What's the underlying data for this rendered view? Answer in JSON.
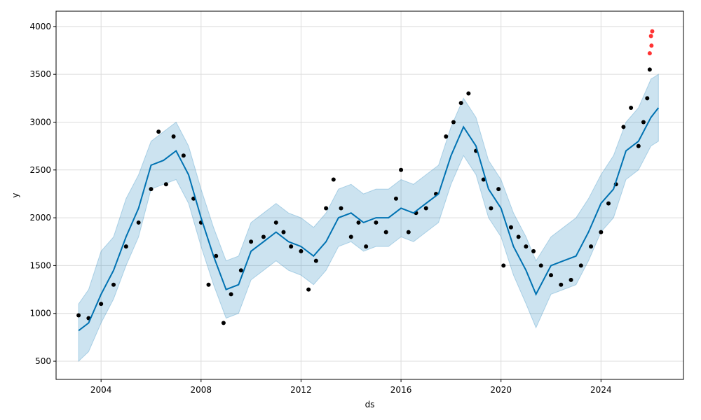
{
  "chart_data": {
    "type": "scatter",
    "xlabel": "ds",
    "ylabel": "y",
    "xlim": [
      2002.2,
      2027.3
    ],
    "ylim": [
      310,
      4160
    ],
    "x_ticks": [
      {
        "value": 2004,
        "label": "2004"
      },
      {
        "value": 2008,
        "label": "2008"
      },
      {
        "value": 2012,
        "label": "2012"
      },
      {
        "value": 2016,
        "label": "2016"
      },
      {
        "value": 2020,
        "label": "2020"
      },
      {
        "value": 2024,
        "label": "2024"
      }
    ],
    "y_ticks": [
      {
        "value": 500,
        "label": "500"
      },
      {
        "value": 1000,
        "label": "1000"
      },
      {
        "value": 1500,
        "label": "1500"
      },
      {
        "value": 2000,
        "label": "2000"
      },
      {
        "value": 2500,
        "label": "2500"
      },
      {
        "value": 3000,
        "label": "3000"
      },
      {
        "value": 3500,
        "label": "3500"
      },
      {
        "value": 4000,
        "label": "4000"
      }
    ],
    "grid": true,
    "colors": {
      "observed": "#000000",
      "forecast": "#0072B2",
      "interval": "#0072B2",
      "outliers": "#ff0000"
    },
    "series": [
      {
        "role": "observed",
        "kind": "points",
        "x": [
          2003.1,
          2003.5,
          2004.0,
          2004.5,
          2005.0,
          2005.5,
          2006.0,
          2006.3,
          2006.6,
          2006.9,
          2007.3,
          2007.7,
          2008.0,
          2008.3,
          2008.6,
          2008.9,
          2009.2,
          2009.6,
          2010.0,
          2010.5,
          2011.0,
          2011.3,
          2011.6,
          2012.0,
          2012.3,
          2012.6,
          2013.0,
          2013.3,
          2013.6,
          2014.0,
          2014.3,
          2014.6,
          2015.0,
          2015.4,
          2015.8,
          2016.0,
          2016.3,
          2016.6,
          2017.0,
          2017.4,
          2017.8,
          2018.1,
          2018.4,
          2018.7,
          2019.0,
          2019.3,
          2019.6,
          2019.9,
          2020.1,
          2020.4,
          2020.7,
          2021.0,
          2021.3,
          2021.6,
          2022.0,
          2022.4,
          2022.8,
          2023.2,
          2023.6,
          2024.0,
          2024.3,
          2024.6,
          2024.9,
          2025.2,
          2025.5,
          2025.7,
          2025.85,
          2025.95
        ],
        "y": [
          980,
          950,
          1100,
          1300,
          1700,
          1950,
          2300,
          2900,
          2350,
          2850,
          2650,
          2200,
          1950,
          1300,
          1600,
          900,
          1200,
          1450,
          1750,
          1800,
          1950,
          1850,
          1700,
          1650,
          1250,
          1550,
          2100,
          2400,
          2100,
          1800,
          1950,
          1700,
          1950,
          1850,
          2200,
          2500,
          1850,
          2050,
          2100,
          2250,
          2850,
          3000,
          3200,
          3300,
          2700,
          2400,
          2100,
          2300,
          1500,
          1900,
          1800,
          1700,
          1650,
          1500,
          1400,
          1300,
          1350,
          1500,
          1700,
          1850,
          2150,
          2350,
          2950,
          3150,
          2750,
          3000,
          3250,
          3550
        ]
      },
      {
        "role": "forecast",
        "kind": "line",
        "x": [
          2003.1,
          2003.5,
          2004.0,
          2004.5,
          2005.0,
          2005.5,
          2006.0,
          2006.5,
          2007.0,
          2007.5,
          2008.0,
          2008.5,
          2009.0,
          2009.5,
          2010.0,
          2010.5,
          2011.0,
          2011.5,
          2012.0,
          2012.5,
          2013.0,
          2013.5,
          2014.0,
          2014.5,
          2015.0,
          2015.5,
          2016.0,
          2016.5,
          2017.0,
          2017.5,
          2018.0,
          2018.5,
          2019.0,
          2019.5,
          2020.0,
          2020.5,
          2021.0,
          2021.4,
          2022.0,
          2022.5,
          2023.0,
          2023.5,
          2024.0,
          2024.5,
          2025.0,
          2025.5,
          2026.0,
          2026.3
        ],
        "y": [
          820,
          900,
          1200,
          1450,
          1800,
          2100,
          2550,
          2600,
          2700,
          2450,
          2000,
          1600,
          1250,
          1300,
          1650,
          1750,
          1850,
          1750,
          1700,
          1600,
          1750,
          2000,
          2050,
          1950,
          2000,
          2000,
          2100,
          2050,
          2150,
          2250,
          2650,
          2950,
          2750,
          2300,
          2100,
          1700,
          1450,
          1200,
          1500,
          1550,
          1600,
          1850,
          2150,
          2300,
          2700,
          2800,
          3050,
          3150
        ]
      },
      {
        "role": "interval_upper",
        "kind": "band",
        "x": [
          2003.1,
          2003.5,
          2004.0,
          2004.5,
          2005.0,
          2005.5,
          2006.0,
          2006.5,
          2007.0,
          2007.5,
          2008.0,
          2008.5,
          2009.0,
          2009.5,
          2010.0,
          2010.5,
          2011.0,
          2011.5,
          2012.0,
          2012.5,
          2013.0,
          2013.5,
          2014.0,
          2014.5,
          2015.0,
          2015.5,
          2016.0,
          2016.5,
          2017.0,
          2017.5,
          2018.0,
          2018.5,
          2019.0,
          2019.5,
          2020.0,
          2020.5,
          2021.0,
          2021.4,
          2022.0,
          2022.5,
          2023.0,
          2023.5,
          2024.0,
          2024.5,
          2025.0,
          2025.5,
          2026.0,
          2026.3
        ],
        "y": [
          1100,
          1250,
          1650,
          1800,
          2200,
          2450,
          2800,
          2900,
          3000,
          2750,
          2300,
          1900,
          1550,
          1600,
          1950,
          2050,
          2150,
          2050,
          2000,
          1900,
          2050,
          2300,
          2350,
          2250,
          2300,
          2300,
          2400,
          2350,
          2450,
          2550,
          2950,
          3250,
          3050,
          2600,
          2400,
          2050,
          1800,
          1550,
          1800,
          1900,
          2000,
          2200,
          2450,
          2650,
          3000,
          3150,
          3450,
          3500
        ]
      },
      {
        "role": "interval_lower",
        "kind": "band",
        "x": [
          2003.1,
          2003.5,
          2004.0,
          2004.5,
          2005.0,
          2005.5,
          2006.0,
          2006.5,
          2007.0,
          2007.5,
          2008.0,
          2008.5,
          2009.0,
          2009.5,
          2010.0,
          2010.5,
          2011.0,
          2011.5,
          2012.0,
          2012.5,
          2013.0,
          2013.5,
          2014.0,
          2014.5,
          2015.0,
          2015.5,
          2016.0,
          2016.5,
          2017.0,
          2017.5,
          2018.0,
          2018.5,
          2019.0,
          2019.5,
          2020.0,
          2020.5,
          2021.0,
          2021.4,
          2022.0,
          2022.5,
          2023.0,
          2023.5,
          2024.0,
          2024.5,
          2025.0,
          2025.5,
          2026.0,
          2026.3
        ],
        "y": [
          500,
          600,
          900,
          1150,
          1500,
          1800,
          2300,
          2350,
          2400,
          2150,
          1700,
          1300,
          950,
          1000,
          1350,
          1450,
          1550,
          1450,
          1400,
          1300,
          1450,
          1700,
          1750,
          1650,
          1700,
          1700,
          1800,
          1750,
          1850,
          1950,
          2350,
          2650,
          2450,
          2000,
          1800,
          1400,
          1100,
          850,
          1200,
          1250,
          1300,
          1550,
          1850,
          2000,
          2400,
          2500,
          2750,
          2800
        ]
      },
      {
        "role": "outliers",
        "kind": "points",
        "x": [
          2025.95,
          2026.0,
          2026.02,
          2026.05
        ],
        "y": [
          3720,
          3900,
          3800,
          3950
        ]
      }
    ]
  }
}
